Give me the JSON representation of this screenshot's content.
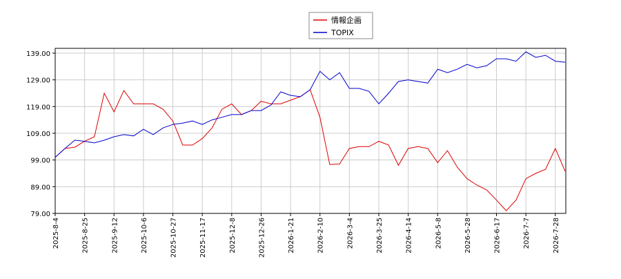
{
  "chart_data": {
    "type": "line",
    "categories": [
      "2025-8-4",
      null,
      null,
      "2025-8-25",
      null,
      null,
      "2025-9-12",
      null,
      null,
      "2025-10-6",
      null,
      null,
      "2025-10-27",
      null,
      null,
      "2025-11-17",
      null,
      null,
      "2025-12-8",
      null,
      null,
      "2025-12-26",
      null,
      null,
      "2026-1-21",
      null,
      null,
      "2026-2-10",
      null,
      null,
      "2026-3-4",
      null,
      null,
      "2026-3-25",
      null,
      null,
      "2026-4-14",
      null,
      null,
      "2026-5-8",
      null,
      null,
      "2026-5-28",
      null,
      null,
      "2026-6-17",
      null,
      null,
      "2026-7-7",
      null,
      null,
      "2026-7-28",
      null
    ],
    "series": [
      {
        "name": "情報企画",
        "color": "#dd0000",
        "values": [
          100,
          103.3,
          103.8,
          106,
          107.7,
          124,
          117,
          125,
          120,
          120,
          120,
          118,
          113.6,
          104.6,
          104.6,
          107,
          111,
          118,
          120,
          116,
          117.5,
          121,
          120,
          120,
          121.4,
          122.7,
          125.3,
          115,
          97.3,
          97.5,
          103.3,
          104,
          104,
          106,
          104.6,
          97,
          103.3,
          104,
          103.3,
          98,
          102.5,
          96.3,
          92,
          89.6,
          87.8,
          84,
          80,
          84,
          92,
          94,
          95.5,
          103.3,
          94.8
        ]
      },
      {
        "name": "TOPIX",
        "color": "#0000cc",
        "values": [
          100,
          103.3,
          106.4,
          106,
          105.4,
          106.4,
          107.7,
          108.5,
          108,
          110.5,
          108.5,
          111,
          112.3,
          112.8,
          113.6,
          112.3,
          114,
          115,
          116,
          116,
          117.5,
          117.5,
          119.6,
          124.5,
          123.2,
          122.7,
          125.3,
          132.2,
          129,
          131.7,
          125.8,
          125.8,
          124.7,
          120,
          124,
          128.4,
          129,
          128.4,
          127.8,
          133,
          131.7,
          133,
          134.8,
          133.5,
          134.3,
          136.9,
          136.9,
          136,
          139.5,
          137.4,
          138.2,
          136,
          135.6
        ]
      }
    ],
    "ylim": [
      79,
      140.8
    ],
    "yticks": [
      {
        "value": 79,
        "label": "79.00"
      },
      {
        "value": 89,
        "label": "89.00"
      },
      {
        "value": 99,
        "label": "99.00"
      },
      {
        "value": 109,
        "label": "109.00"
      },
      {
        "value": 119,
        "label": "119.00"
      },
      {
        "value": 129,
        "label": "129.00"
      },
      {
        "value": 139,
        "label": "139.00"
      }
    ],
    "grid": true,
    "legend": "top"
  }
}
